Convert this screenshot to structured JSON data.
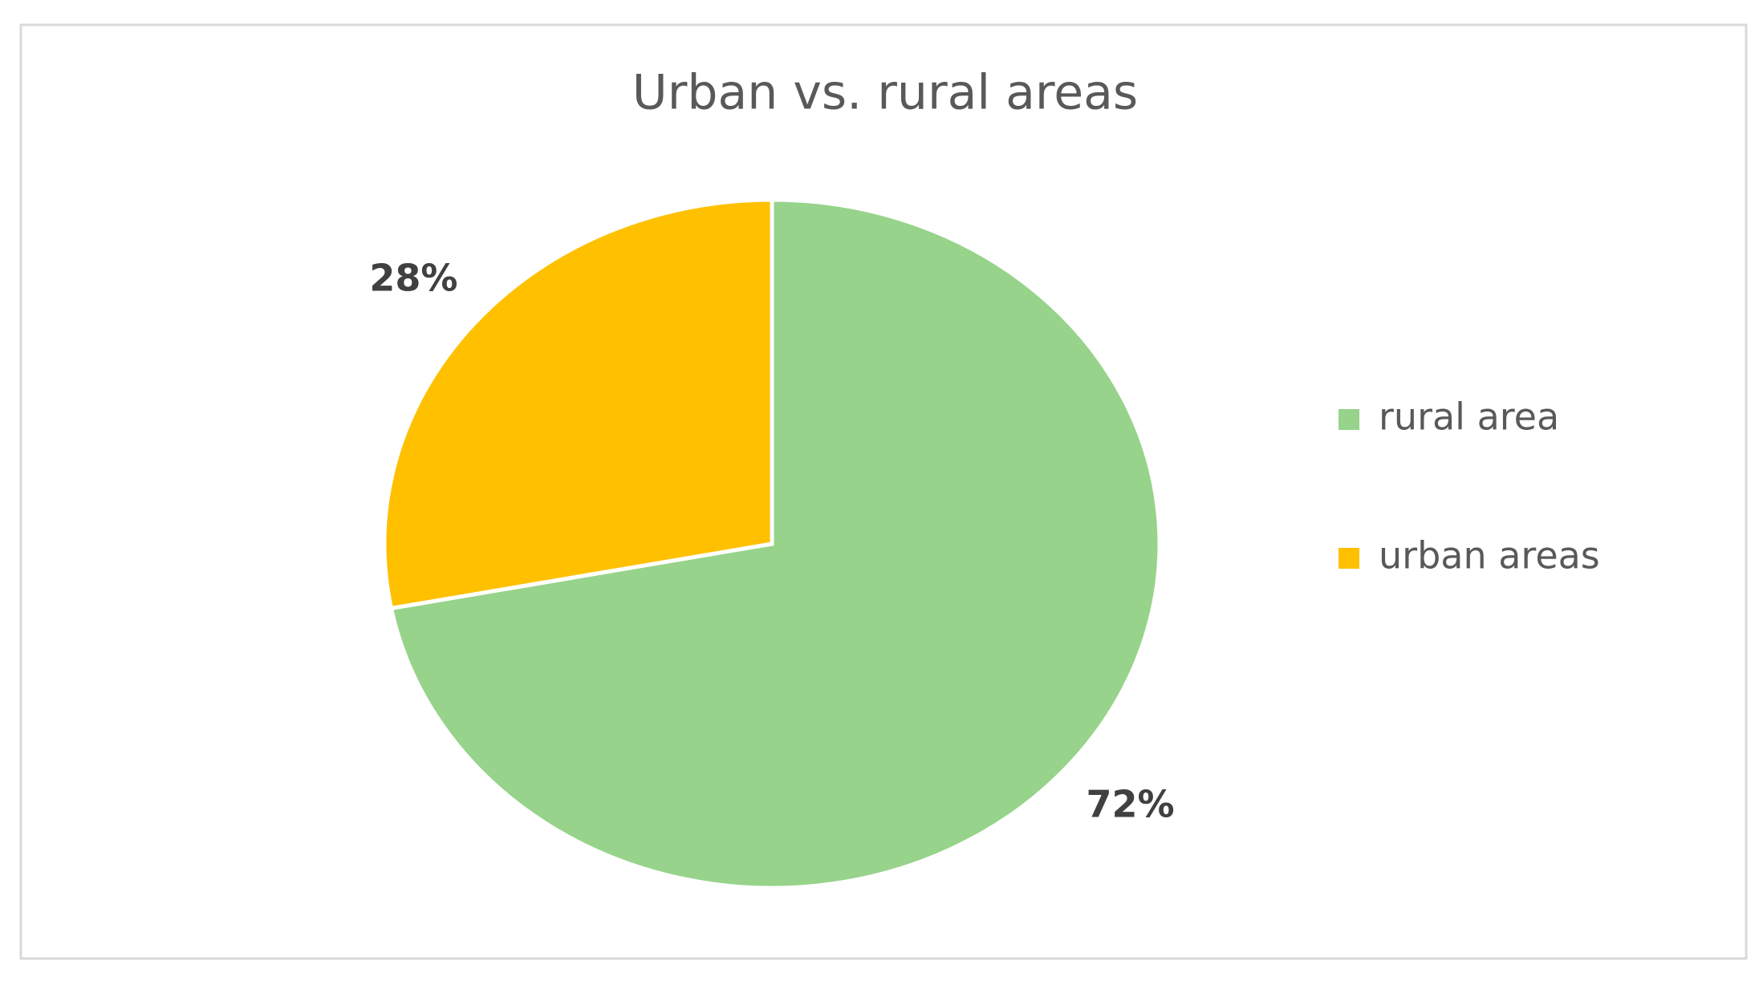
{
  "chart_data": {
    "type": "pie",
    "title": "Urban vs. rural areas",
    "categories": [
      "rural area",
      "urban areas"
    ],
    "values": [
      72,
      28
    ],
    "value_labels": [
      "72%",
      "28%"
    ],
    "colors": [
      "#97d38b",
      "#ffc000"
    ],
    "legend": "right"
  }
}
